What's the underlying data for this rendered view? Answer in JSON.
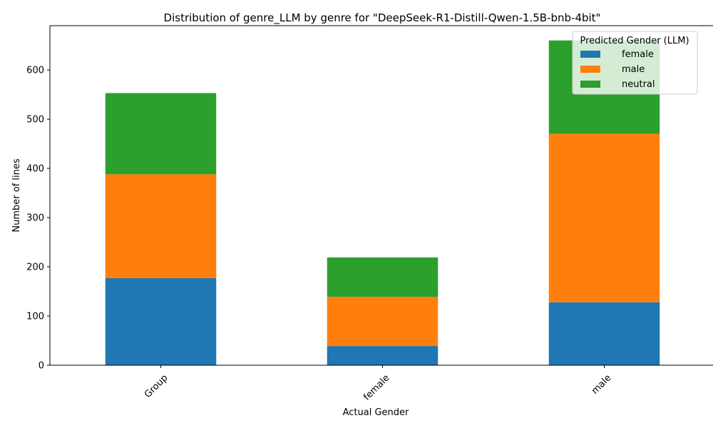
{
  "chart_data": {
    "type": "bar",
    "stacked": true,
    "title": "Distribution of genre_LLM by genre for \"DeepSeek-R1-Distill-Qwen-1.5B-bnb-4bit\"",
    "xlabel": "Actual Gender",
    "ylabel": "Number of lines",
    "categories": [
      "Group",
      "female",
      "male"
    ],
    "series": [
      {
        "name": "female",
        "color": "#1f77b4",
        "values": [
          177,
          39,
          128
        ]
      },
      {
        "name": "male",
        "color": "#ff7f0e",
        "values": [
          211,
          100,
          342
        ]
      },
      {
        "name": "neutral",
        "color": "#2ca02c",
        "values": [
          165,
          80,
          190
        ]
      }
    ],
    "ylim": [
      0,
      690
    ],
    "yticks": [
      0,
      100,
      200,
      300,
      400,
      500,
      600
    ],
    "grid": false,
    "legend": {
      "title": "Predicted Gender (LLM)",
      "position": "top-right"
    }
  }
}
